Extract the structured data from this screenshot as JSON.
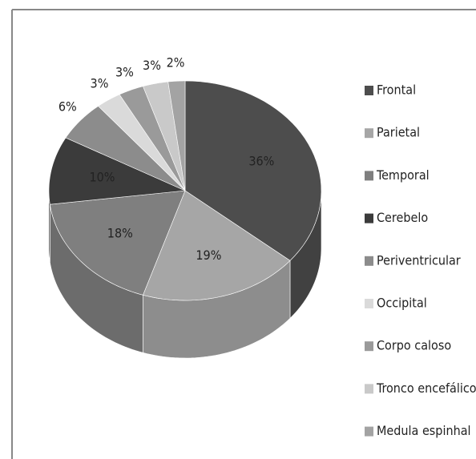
{
  "chart_data": {
    "type": "pie3d",
    "categories": [
      "Frontal",
      "Parietal",
      "Temporal",
      "Cerebelo",
      "Periventricular",
      "Occipital",
      "Corpo caloso",
      "Tronco encefálico",
      "Medula espinhal"
    ],
    "values": [
      36,
      19,
      18,
      10,
      6,
      3,
      3,
      3,
      2
    ],
    "value_labels": [
      "36%",
      "19%",
      "18%",
      "10%",
      "6%",
      "3%",
      "3%",
      "3%",
      "2%"
    ],
    "colors": [
      "#4d4d4d",
      "#a6a6a6",
      "#7f7f7f",
      "#3b3b3b",
      "#8c8c8c",
      "#dadada",
      "#9a9a9a",
      "#c9c9c9",
      "#a3a3a3"
    ],
    "legend": "right"
  }
}
